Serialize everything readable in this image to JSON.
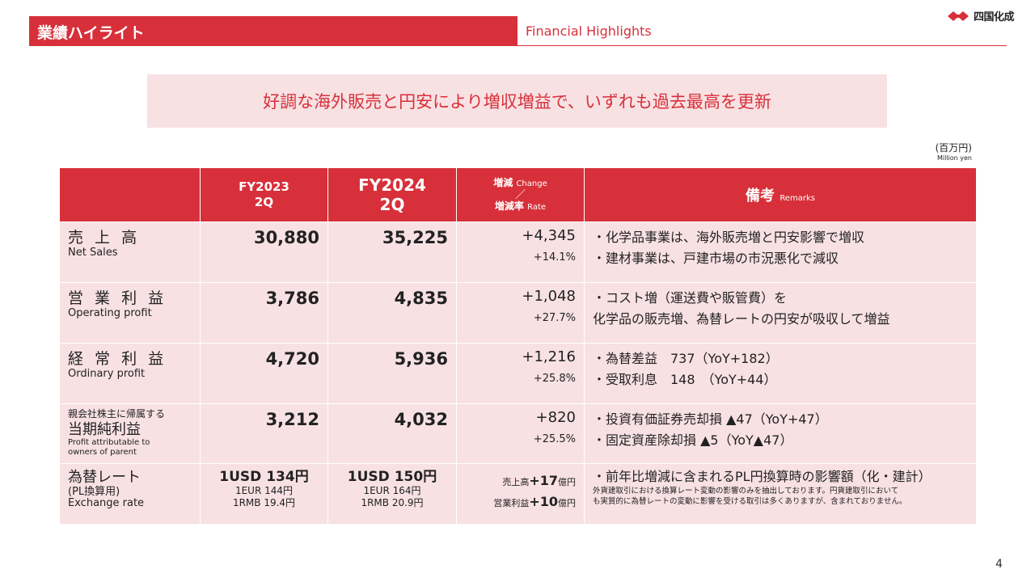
{
  "header": {
    "title_jp": "業績ハイライト",
    "title_en": "Financial Highlights",
    "logo_text": "四国化成"
  },
  "headline": "好調な海外販売と円安により増収増益で、いずれも過去最高を更新",
  "unit": {
    "jp": "(百万円)",
    "en": "Million yen"
  },
  "table": {
    "columns": {
      "fy2023_line1": "FY2023",
      "fy2023_line2": "2Q",
      "fy2024_line1": "FY2024",
      "fy2024_line2": "2Q",
      "change_jp": "増減",
      "change_en": "Change",
      "slash": "／",
      "rate_jp": "増減率",
      "rate_en": "Rate",
      "remarks_jp": "備考",
      "remarks_en": "Remarks"
    },
    "rows": [
      {
        "label_jp": "売 上 高",
        "label_en": "Net Sales",
        "fy2023": "30,880",
        "fy2024": "35,225",
        "change": "+4,345",
        "rate": "+14.1%",
        "remarks": [
          "・化学品事業は、海外販売増と円安影響で増収",
          "・建材事業は、戸建市場の市況悪化で減収"
        ]
      },
      {
        "label_jp": "営 業 利 益",
        "label_en": "Operating profit",
        "fy2023": "3,786",
        "fy2024": "4,835",
        "change": "+1,048",
        "rate": "+27.7%",
        "remarks": [
          "・コスト増（運送費や販管費）を",
          " 化学品の販売増、為替レートの円安が吸収して増益"
        ]
      },
      {
        "label_jp": "経 常 利 益",
        "label_en": "Ordinary profit",
        "fy2023": "4,720",
        "fy2024": "5,936",
        "change": "+1,216",
        "rate": "+25.8%",
        "remarks": [
          "・為替差益　737（YoY+182）",
          "・受取利息　148　（YoY+44）"
        ]
      },
      {
        "label_small": "親会社株主に帰属する",
        "label_jp": "当期純利益",
        "label_en_1": "Profit attributable to",
        "label_en_2": "owners of parent",
        "fy2023": "3,212",
        "fy2024": "4,032",
        "change": "+820",
        "rate": "+25.5%",
        "remarks": [
          "・投資有価証券売却損 ▲47（YoY+47）",
          "・固定資産除却損 ▲5（YoY▲47）"
        ]
      }
    ],
    "fx_row": {
      "label_jp": "為替レート",
      "label_sub": "(PL換算用)",
      "label_en": "Exchange rate",
      "fy2023_main": "1USD 134円",
      "fy2023_eur": "1EUR 144円",
      "fy2023_rmb": "1RMB 19.4円",
      "fy2024_main": "1USD 150円",
      "fy2024_eur": "1EUR 164円",
      "fy2024_rmb": "1RMB 20.9円",
      "change_sales_label": "売上高",
      "change_sales_value": "+17",
      "change_sales_unit": "億円",
      "change_op_label": "営業利益",
      "change_op_value": "+10",
      "change_op_unit": "億円",
      "remarks_main": "・前年比増減に含まれるPL円換算時の影響額（化・建計）",
      "remarks_note_1": "外貨建取引における換算レート変動の影響のみを抽出しております。円貨建取引において",
      "remarks_note_2": "も実質的に為替レートの変動に影響を受ける取引は多くありますが、含まれておりません。"
    }
  },
  "page_number": "4",
  "colors": {
    "accent": "#d7303a",
    "row_bg": "#f8e1e3"
  }
}
